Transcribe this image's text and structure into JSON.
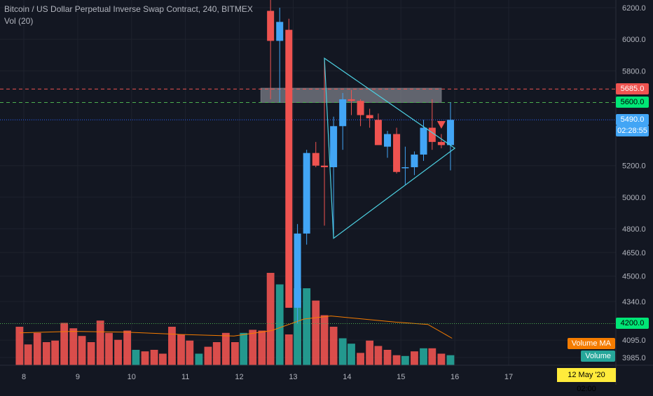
{
  "legend": {
    "title": "Bitcoin / US Dollar Perpetual Inverse Swap Contract, 240, BITMEX",
    "volume": "Vol (20)"
  },
  "colors": {
    "bg": "#131722",
    "grid": "#1e222d",
    "up": "#42a5f5",
    "down": "#ef5350",
    "vol_up": "#26a69a",
    "vol_down": "#ef5350",
    "triangle": "#4dd0e1",
    "ma": "#f57c00"
  },
  "price_axis": {
    "labels": [
      "6200.0",
      "6000.0",
      "5800.0",
      "5200.0",
      "5000.0",
      "4800.0",
      "4650.0",
      "4500.0",
      "4340.0",
      "4095.0",
      "3985.0"
    ]
  },
  "time_axis": {
    "labels": [
      "8",
      "9",
      "10",
      "11",
      "12",
      "13",
      "14",
      "15",
      "16",
      "17"
    ]
  },
  "levels": [
    {
      "price": 5685,
      "label": "5685.0",
      "color": "#ef5350",
      "style": "dashed"
    },
    {
      "price": 5600,
      "label": "5600.0",
      "color": "#4caf50",
      "style": "dashed"
    },
    {
      "price": 5490,
      "label": "5490.0",
      "color": "#2962ff",
      "style": "dotted"
    },
    {
      "price": 4200,
      "label": "4200.0",
      "color": "#4caf50",
      "style": "dotted"
    }
  ],
  "countdown": "02:28:55",
  "volume_tags": {
    "ma": "Volume MA",
    "volume": "Volume"
  },
  "cursor_date": "12 May '20   02:00",
  "chart_data": {
    "type": "candlestick",
    "title": "Bitcoin / US Dollar Perpetual Inverse Swap Contract, 240, BITMEX",
    "candles": [
      {
        "d": 12.58,
        "o": 6180,
        "h": 6430,
        "l": 5620,
        "c": 5990
      },
      {
        "d": 12.75,
        "o": 5990,
        "h": 6200,
        "l": 5600,
        "c": 6110
      },
      {
        "d": 12.92,
        "o": 6060,
        "h": 6130,
        "l": 4300,
        "c": 4300
      },
      {
        "d": 13.08,
        "o": 4300,
        "h": 4830,
        "l": 4200,
        "c": 4770
      },
      {
        "d": 13.25,
        "o": 4770,
        "h": 5300,
        "l": 4700,
        "c": 5280
      },
      {
        "d": 13.42,
        "o": 5280,
        "h": 5350,
        "l": 5190,
        "c": 5200
      },
      {
        "d": 13.58,
        "o": 5200,
        "h": 5880,
        "l": 4820,
        "c": 5190
      },
      {
        "d": 13.75,
        "o": 5190,
        "h": 5510,
        "l": 4740,
        "c": 5450
      },
      {
        "d": 13.92,
        "o": 5450,
        "h": 5660,
        "l": 5300,
        "c": 5620
      },
      {
        "d": 14.08,
        "o": 5620,
        "h": 5680,
        "l": 5520,
        "c": 5610
      },
      {
        "d": 14.25,
        "o": 5610,
        "h": 5620,
        "l": 5450,
        "c": 5520
      },
      {
        "d": 14.42,
        "o": 5520,
        "h": 5560,
        "l": 5440,
        "c": 5500
      },
      {
        "d": 14.58,
        "o": 5490,
        "h": 5530,
        "l": 5340,
        "c": 5330
      },
      {
        "d": 14.75,
        "o": 5320,
        "h": 5420,
        "l": 5250,
        "c": 5400
      },
      {
        "d": 14.92,
        "o": 5400,
        "h": 5440,
        "l": 5150,
        "c": 5160
      },
      {
        "d": 15.08,
        "o": 5190,
        "h": 5320,
        "l": 5080,
        "c": 5190
      },
      {
        "d": 15.25,
        "o": 5190,
        "h": 5290,
        "l": 5140,
        "c": 5270
      },
      {
        "d": 15.42,
        "o": 5270,
        "h": 5490,
        "l": 5230,
        "c": 5440
      },
      {
        "d": 15.58,
        "o": 5440,
        "h": 5620,
        "l": 5300,
        "c": 5350
      },
      {
        "d": 15.75,
        "o": 5350,
        "h": 5400,
        "l": 5310,
        "c": 5330
      },
      {
        "d": 15.92,
        "o": 5330,
        "h": 5600,
        "l": 5170,
        "c": 5490
      }
    ],
    "volume": [
      {
        "d": 7.92,
        "v": 0.5,
        "up": false
      },
      {
        "d": 8.08,
        "v": 0.27,
        "up": false
      },
      {
        "d": 8.25,
        "v": 0.42,
        "up": false
      },
      {
        "d": 8.42,
        "v": 0.3,
        "up": false
      },
      {
        "d": 8.58,
        "v": 0.32,
        "up": false
      },
      {
        "d": 8.75,
        "v": 0.55,
        "up": false
      },
      {
        "d": 8.92,
        "v": 0.48,
        "up": false
      },
      {
        "d": 9.08,
        "v": 0.38,
        "up": false
      },
      {
        "d": 9.25,
        "v": 0.3,
        "up": false
      },
      {
        "d": 9.42,
        "v": 0.58,
        "up": false
      },
      {
        "d": 9.58,
        "v": 0.42,
        "up": false
      },
      {
        "d": 9.75,
        "v": 0.33,
        "up": false
      },
      {
        "d": 9.92,
        "v": 0.45,
        "up": false
      },
      {
        "d": 10.08,
        "v": 0.2,
        "up": true
      },
      {
        "d": 10.25,
        "v": 0.18,
        "up": false
      },
      {
        "d": 10.42,
        "v": 0.2,
        "up": false
      },
      {
        "d": 10.58,
        "v": 0.15,
        "up": false
      },
      {
        "d": 10.75,
        "v": 0.5,
        "up": false
      },
      {
        "d": 10.92,
        "v": 0.4,
        "up": false
      },
      {
        "d": 11.08,
        "v": 0.32,
        "up": false
      },
      {
        "d": 11.25,
        "v": 0.15,
        "up": true
      },
      {
        "d": 11.42,
        "v": 0.24,
        "up": false
      },
      {
        "d": 11.58,
        "v": 0.3,
        "up": false
      },
      {
        "d": 11.75,
        "v": 0.42,
        "up": false
      },
      {
        "d": 11.92,
        "v": 0.3,
        "up": false
      },
      {
        "d": 12.08,
        "v": 0.42,
        "up": true
      },
      {
        "d": 12.25,
        "v": 0.46,
        "up": false
      },
      {
        "d": 12.42,
        "v": 0.45,
        "up": false
      },
      {
        "d": 12.58,
        "v": 1.2,
        "up": false
      },
      {
        "d": 12.75,
        "v": 1.05,
        "up": true
      },
      {
        "d": 12.92,
        "v": 0.4,
        "up": false
      },
      {
        "d": 13.08,
        "v": 1.0,
        "up": true
      },
      {
        "d": 13.25,
        "v": 1.0,
        "up": true
      },
      {
        "d": 13.42,
        "v": 0.84,
        "up": false
      },
      {
        "d": 13.58,
        "v": 0.65,
        "up": false
      },
      {
        "d": 13.75,
        "v": 0.5,
        "up": false
      },
      {
        "d": 13.92,
        "v": 0.35,
        "up": true
      },
      {
        "d": 14.08,
        "v": 0.28,
        "up": true
      },
      {
        "d": 14.25,
        "v": 0.16,
        "up": false
      },
      {
        "d": 14.42,
        "v": 0.32,
        "up": false
      },
      {
        "d": 14.58,
        "v": 0.25,
        "up": false
      },
      {
        "d": 14.75,
        "v": 0.2,
        "up": false
      },
      {
        "d": 14.92,
        "v": 0.13,
        "up": false
      },
      {
        "d": 15.08,
        "v": 0.12,
        "up": true
      },
      {
        "d": 15.25,
        "v": 0.18,
        "up": false
      },
      {
        "d": 15.42,
        "v": 0.22,
        "up": true
      },
      {
        "d": 15.58,
        "v": 0.22,
        "up": false
      },
      {
        "d": 15.75,
        "v": 0.15,
        "up": false
      },
      {
        "d": 15.92,
        "v": 0.13,
        "up": true
      }
    ],
    "volume_ma": [
      [
        7.92,
        0.42
      ],
      [
        8.9,
        0.44
      ],
      [
        9.9,
        0.43
      ],
      [
        10.9,
        0.4
      ],
      [
        11.9,
        0.38
      ],
      [
        12.6,
        0.45
      ],
      [
        13.2,
        0.6
      ],
      [
        13.7,
        0.64
      ],
      [
        14.3,
        0.6
      ],
      [
        14.9,
        0.56
      ],
      [
        15.5,
        0.53
      ],
      [
        15.95,
        0.35
      ]
    ],
    "triangle": [
      [
        13.58,
        5880
      ],
      [
        16.0,
        5310
      ],
      [
        13.75,
        4740
      ]
    ],
    "zone": {
      "from_d": 12.4,
      "to_d": 15.75,
      "low": 5600,
      "high": 5690
    },
    "arrow": {
      "d": 15.75,
      "price": 5460
    },
    "y_range": [
      3930,
      6290
    ],
    "x_range": [
      7.55,
      17.75
    ]
  }
}
